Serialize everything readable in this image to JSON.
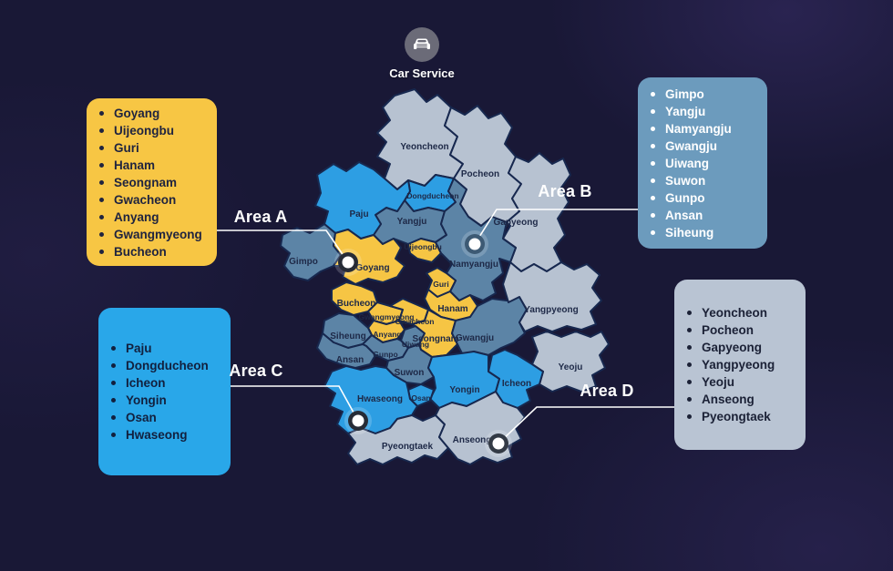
{
  "header": {
    "title": "Car Service",
    "icon": "car-icon"
  },
  "colors": {
    "background": "#191836",
    "area_a": "#F7C644",
    "area_b": "#6C9BBD",
    "area_c": "#29A7E9",
    "area_d": "#B9C4D3",
    "connector_line": "#FFFFFF",
    "map_border": "#17284F"
  },
  "areas": [
    {
      "id": "A",
      "label": "Area A",
      "color": "#F7C644",
      "cities": [
        "Goyang",
        "Uijeongbu",
        "Guri",
        "Hanam",
        "Seongnam",
        "Gwacheon",
        "Anyang",
        "Gwangmyeong",
        "Bucheon"
      ]
    },
    {
      "id": "B",
      "label": "Area B",
      "color": "#6C9BBD",
      "cities": [
        "Gimpo",
        "Yangju",
        "Namyangju",
        "Gwangju",
        "Uiwang",
        "Suwon",
        "Gunpo",
        "Ansan",
        "Siheung"
      ]
    },
    {
      "id": "C",
      "label": "Area C",
      "color": "#29A7E9",
      "cities": [
        "Paju",
        "Dongducheon",
        "Icheon",
        "Yongin",
        "Osan",
        "Hwaseong"
      ]
    },
    {
      "id": "D",
      "label": "Area D",
      "color": "#B9C4D3",
      "cities": [
        "Yeoncheon",
        "Pocheon",
        "Gapyeong",
        "Yangpyeong",
        "Yeoju",
        "Anseong",
        "Pyeongtaek"
      ]
    }
  ],
  "map": {
    "regions": [
      {
        "name": "Yeoncheon",
        "area": "D"
      },
      {
        "name": "Pocheon",
        "area": "D"
      },
      {
        "name": "Gapyeong",
        "area": "D"
      },
      {
        "name": "Dongducheon",
        "area": "C"
      },
      {
        "name": "Yangju",
        "area": "B"
      },
      {
        "name": "Paju",
        "area": "C"
      },
      {
        "name": "Gimpo",
        "area": "B"
      },
      {
        "name": "Goyang",
        "area": "A"
      },
      {
        "name": "Uijeongbu",
        "area": "A"
      },
      {
        "name": "Namyangju",
        "area": "B"
      },
      {
        "name": "Guri",
        "area": "A"
      },
      {
        "name": "Hanam",
        "area": "A"
      },
      {
        "name": "Bucheon",
        "area": "A"
      },
      {
        "name": "Gwangmyeong",
        "area": "A"
      },
      {
        "name": "Gwacheon",
        "area": "A"
      },
      {
        "name": "Anyang",
        "area": "A"
      },
      {
        "name": "Uiwang",
        "area": "B"
      },
      {
        "name": "Seongnam",
        "area": "A"
      },
      {
        "name": "Siheung",
        "area": "B"
      },
      {
        "name": "Gunpo",
        "area": "B"
      },
      {
        "name": "Ansan",
        "area": "B"
      },
      {
        "name": "Suwon",
        "area": "B"
      },
      {
        "name": "Gwangju",
        "area": "B"
      },
      {
        "name": "Yangpyeong",
        "area": "D"
      },
      {
        "name": "Yeoju",
        "area": "D"
      },
      {
        "name": "Icheon",
        "area": "C"
      },
      {
        "name": "Yongin",
        "area": "C"
      },
      {
        "name": "Osan",
        "area": "C"
      },
      {
        "name": "Hwaseong",
        "area": "C"
      },
      {
        "name": "Pyeongtaek",
        "area": "D"
      },
      {
        "name": "Anseong",
        "area": "D"
      }
    ]
  }
}
